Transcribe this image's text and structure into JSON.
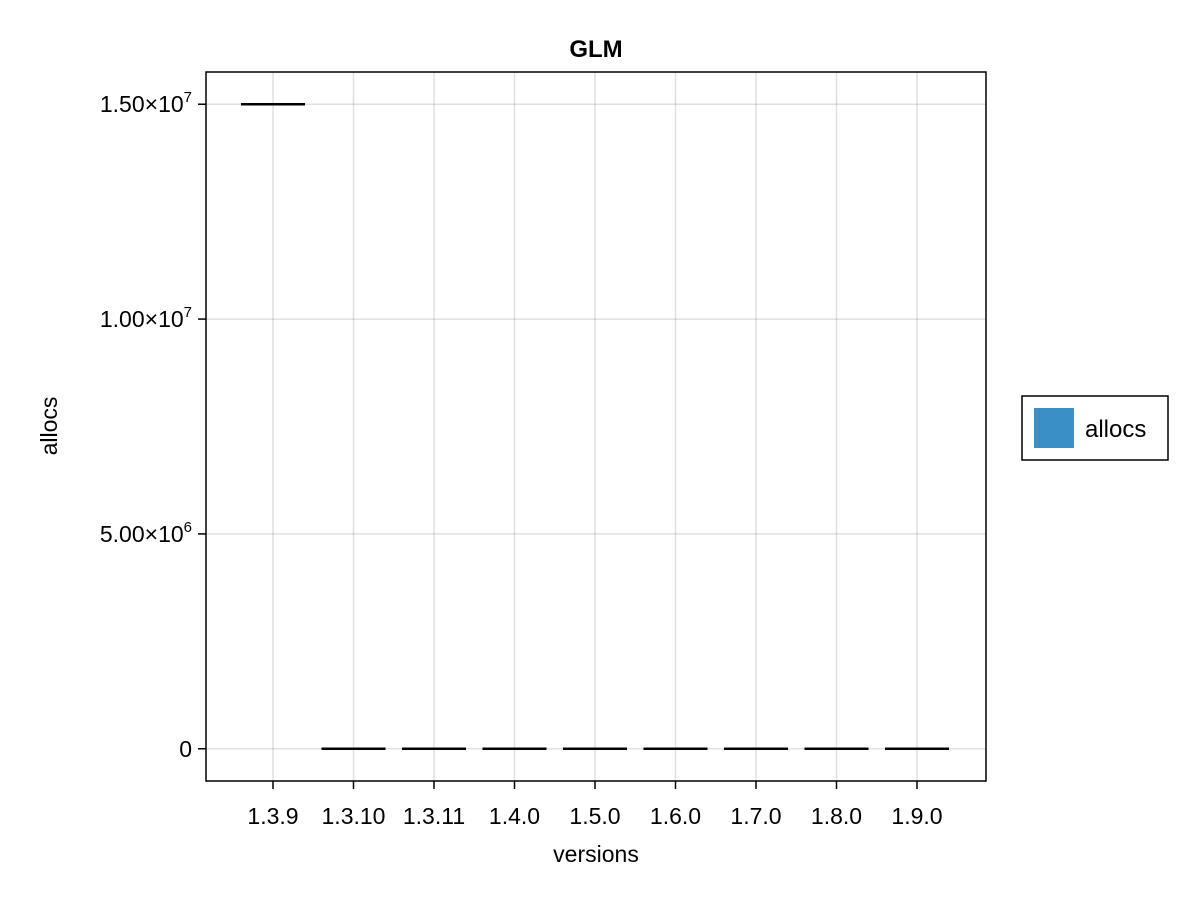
{
  "chart_data": {
    "type": "crossbar",
    "title": "GLM",
    "xlabel": "versions",
    "ylabel": "allocs",
    "categories": [
      "1.3.9",
      "1.3.10",
      "1.3.11",
      "1.4.0",
      "1.5.0",
      "1.6.0",
      "1.7.0",
      "1.8.0",
      "1.9.0"
    ],
    "series": [
      {
        "name": "allocs",
        "color": "#3a8fc7",
        "values": [
          15000000,
          0,
          0,
          0,
          0,
          0,
          0,
          0,
          0
        ]
      }
    ],
    "ylim": [
      -750000,
      15750000
    ],
    "yticks": [
      0,
      5000000,
      10000000,
      15000000
    ],
    "ytick_labels": [
      {
        "mantissa": "0",
        "exponent": ""
      },
      {
        "mantissa": "5.00×10",
        "exponent": "6"
      },
      {
        "mantissa": "1.00×10",
        "exponent": "7"
      },
      {
        "mantissa": "1.50×10",
        "exponent": "7"
      }
    ],
    "grid": true,
    "legend_position": "right"
  }
}
